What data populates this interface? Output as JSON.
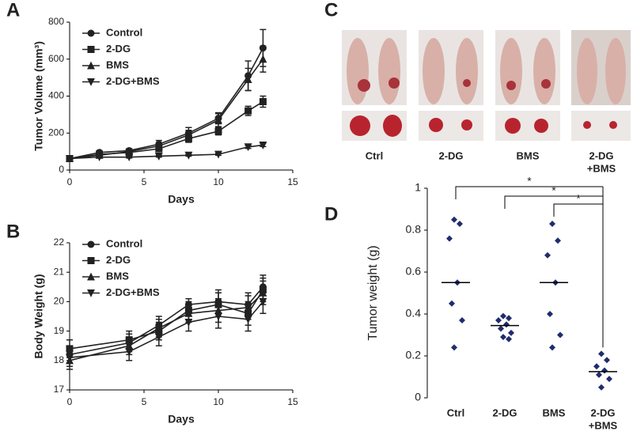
{
  "chart_data": [
    {
      "type": "line",
      "panel_label": "A",
      "xlabel": "Days",
      "ylabel": "Tumor Volume (mm³)",
      "x": [
        0,
        2,
        4,
        6,
        8,
        10,
        12,
        13
      ],
      "series": [
        {
          "name": "Control",
          "marker": "circle",
          "color": "#222",
          "values": [
            62,
            95,
            105,
            140,
            200,
            280,
            510,
            660
          ],
          "errors": [
            8,
            10,
            10,
            20,
            30,
            30,
            80,
            100
          ]
        },
        {
          "name": "2-DG",
          "marker": "square",
          "color": "#222",
          "values": [
            62,
            85,
            95,
            115,
            170,
            210,
            320,
            370
          ],
          "errors": [
            8,
            8,
            8,
            15,
            20,
            20,
            25,
            30
          ]
        },
        {
          "name": "BMS",
          "marker": "triangle-up",
          "color": "#222",
          "values": [
            62,
            80,
            100,
            130,
            190,
            270,
            490,
            600
          ],
          "errors": [
            8,
            8,
            8,
            15,
            25,
            35,
            60,
            70
          ]
        },
        {
          "name": "2-DG+BMS",
          "marker": "triangle-down",
          "color": "#222",
          "values": [
            62,
            70,
            70,
            75,
            80,
            85,
            125,
            135
          ],
          "errors": [
            5,
            5,
            5,
            5,
            5,
            5,
            8,
            8
          ]
        }
      ],
      "xlim": [
        0,
        15
      ],
      "xticks": [
        0,
        5,
        10,
        15
      ],
      "ylim": [
        0,
        800
      ],
      "yticks": [
        0,
        200,
        400,
        600,
        800
      ]
    },
    {
      "type": "line",
      "panel_label": "B",
      "xlabel": "Days",
      "ylabel": "Body Weight (g)",
      "x": [
        0,
        4,
        6,
        8,
        10,
        12,
        13
      ],
      "series": [
        {
          "name": "Control",
          "marker": "circle",
          "color": "#222",
          "values": [
            18.2,
            18.6,
            19.2,
            19.9,
            20.0,
            19.9,
            20.5
          ],
          "errors": [
            0.3,
            0.3,
            0.3,
            0.2,
            0.4,
            0.4,
            0.4
          ]
        },
        {
          "name": "2-DG",
          "marker": "square",
          "color": "#222",
          "values": [
            18.4,
            18.7,
            19.0,
            19.7,
            19.9,
            19.6,
            20.4
          ],
          "errors": [
            0.3,
            0.3,
            0.3,
            0.3,
            0.4,
            0.4,
            0.4
          ]
        },
        {
          "name": "BMS",
          "marker": "triangle-up",
          "color": "#222",
          "values": [
            18.0,
            18.5,
            19.1,
            19.6,
            19.7,
            19.8,
            20.3
          ],
          "errors": [
            0.3,
            0.3,
            0.3,
            0.3,
            0.4,
            0.4,
            0.4
          ]
        },
        {
          "name": "2-DG+BMS",
          "marker": "triangle-down",
          "color": "#222",
          "values": [
            18.1,
            18.3,
            18.8,
            19.3,
            19.5,
            19.4,
            20.0
          ],
          "errors": [
            0.3,
            0.3,
            0.3,
            0.3,
            0.4,
            0.4,
            0.4
          ]
        }
      ],
      "xlim": [
        0,
        15
      ],
      "xticks": [
        0,
        5,
        10,
        15
      ],
      "ylim": [
        17,
        22
      ],
      "yticks": [
        17,
        18,
        19,
        20,
        21,
        22
      ]
    },
    {
      "type": "dotplot",
      "panel_label": "D",
      "ylabel": "Tumor weight (g)",
      "categories": [
        "Ctrl",
        "2-DG",
        "BMS",
        [
          "2-DG",
          "+BMS"
        ]
      ],
      "points": [
        [
          0.85,
          0.83,
          0.76,
          0.55,
          0.45,
          0.37,
          0.24
        ],
        [
          0.39,
          0.38,
          0.37,
          0.35,
          0.33,
          0.31,
          0.29,
          0.28
        ],
        [
          0.83,
          0.75,
          0.68,
          0.55,
          0.4,
          0.3,
          0.24
        ],
        [
          0.21,
          0.18,
          0.15,
          0.13,
          0.11,
          0.09,
          0.05
        ]
      ],
      "means": [
        0.55,
        0.345,
        0.55,
        0.125
      ],
      "color": "#1f2d6e",
      "significance": [
        "*",
        "*",
        "*"
      ],
      "ylim": [
        0,
        1
      ],
      "yticks": [
        0,
        0.2,
        0.4,
        0.6,
        0.8,
        1
      ]
    }
  ],
  "photo_panel": {
    "panel_label": "C",
    "groups": [
      "Ctrl",
      "2-DG",
      "BMS",
      [
        "2-DG",
        "+BMS"
      ]
    ]
  }
}
